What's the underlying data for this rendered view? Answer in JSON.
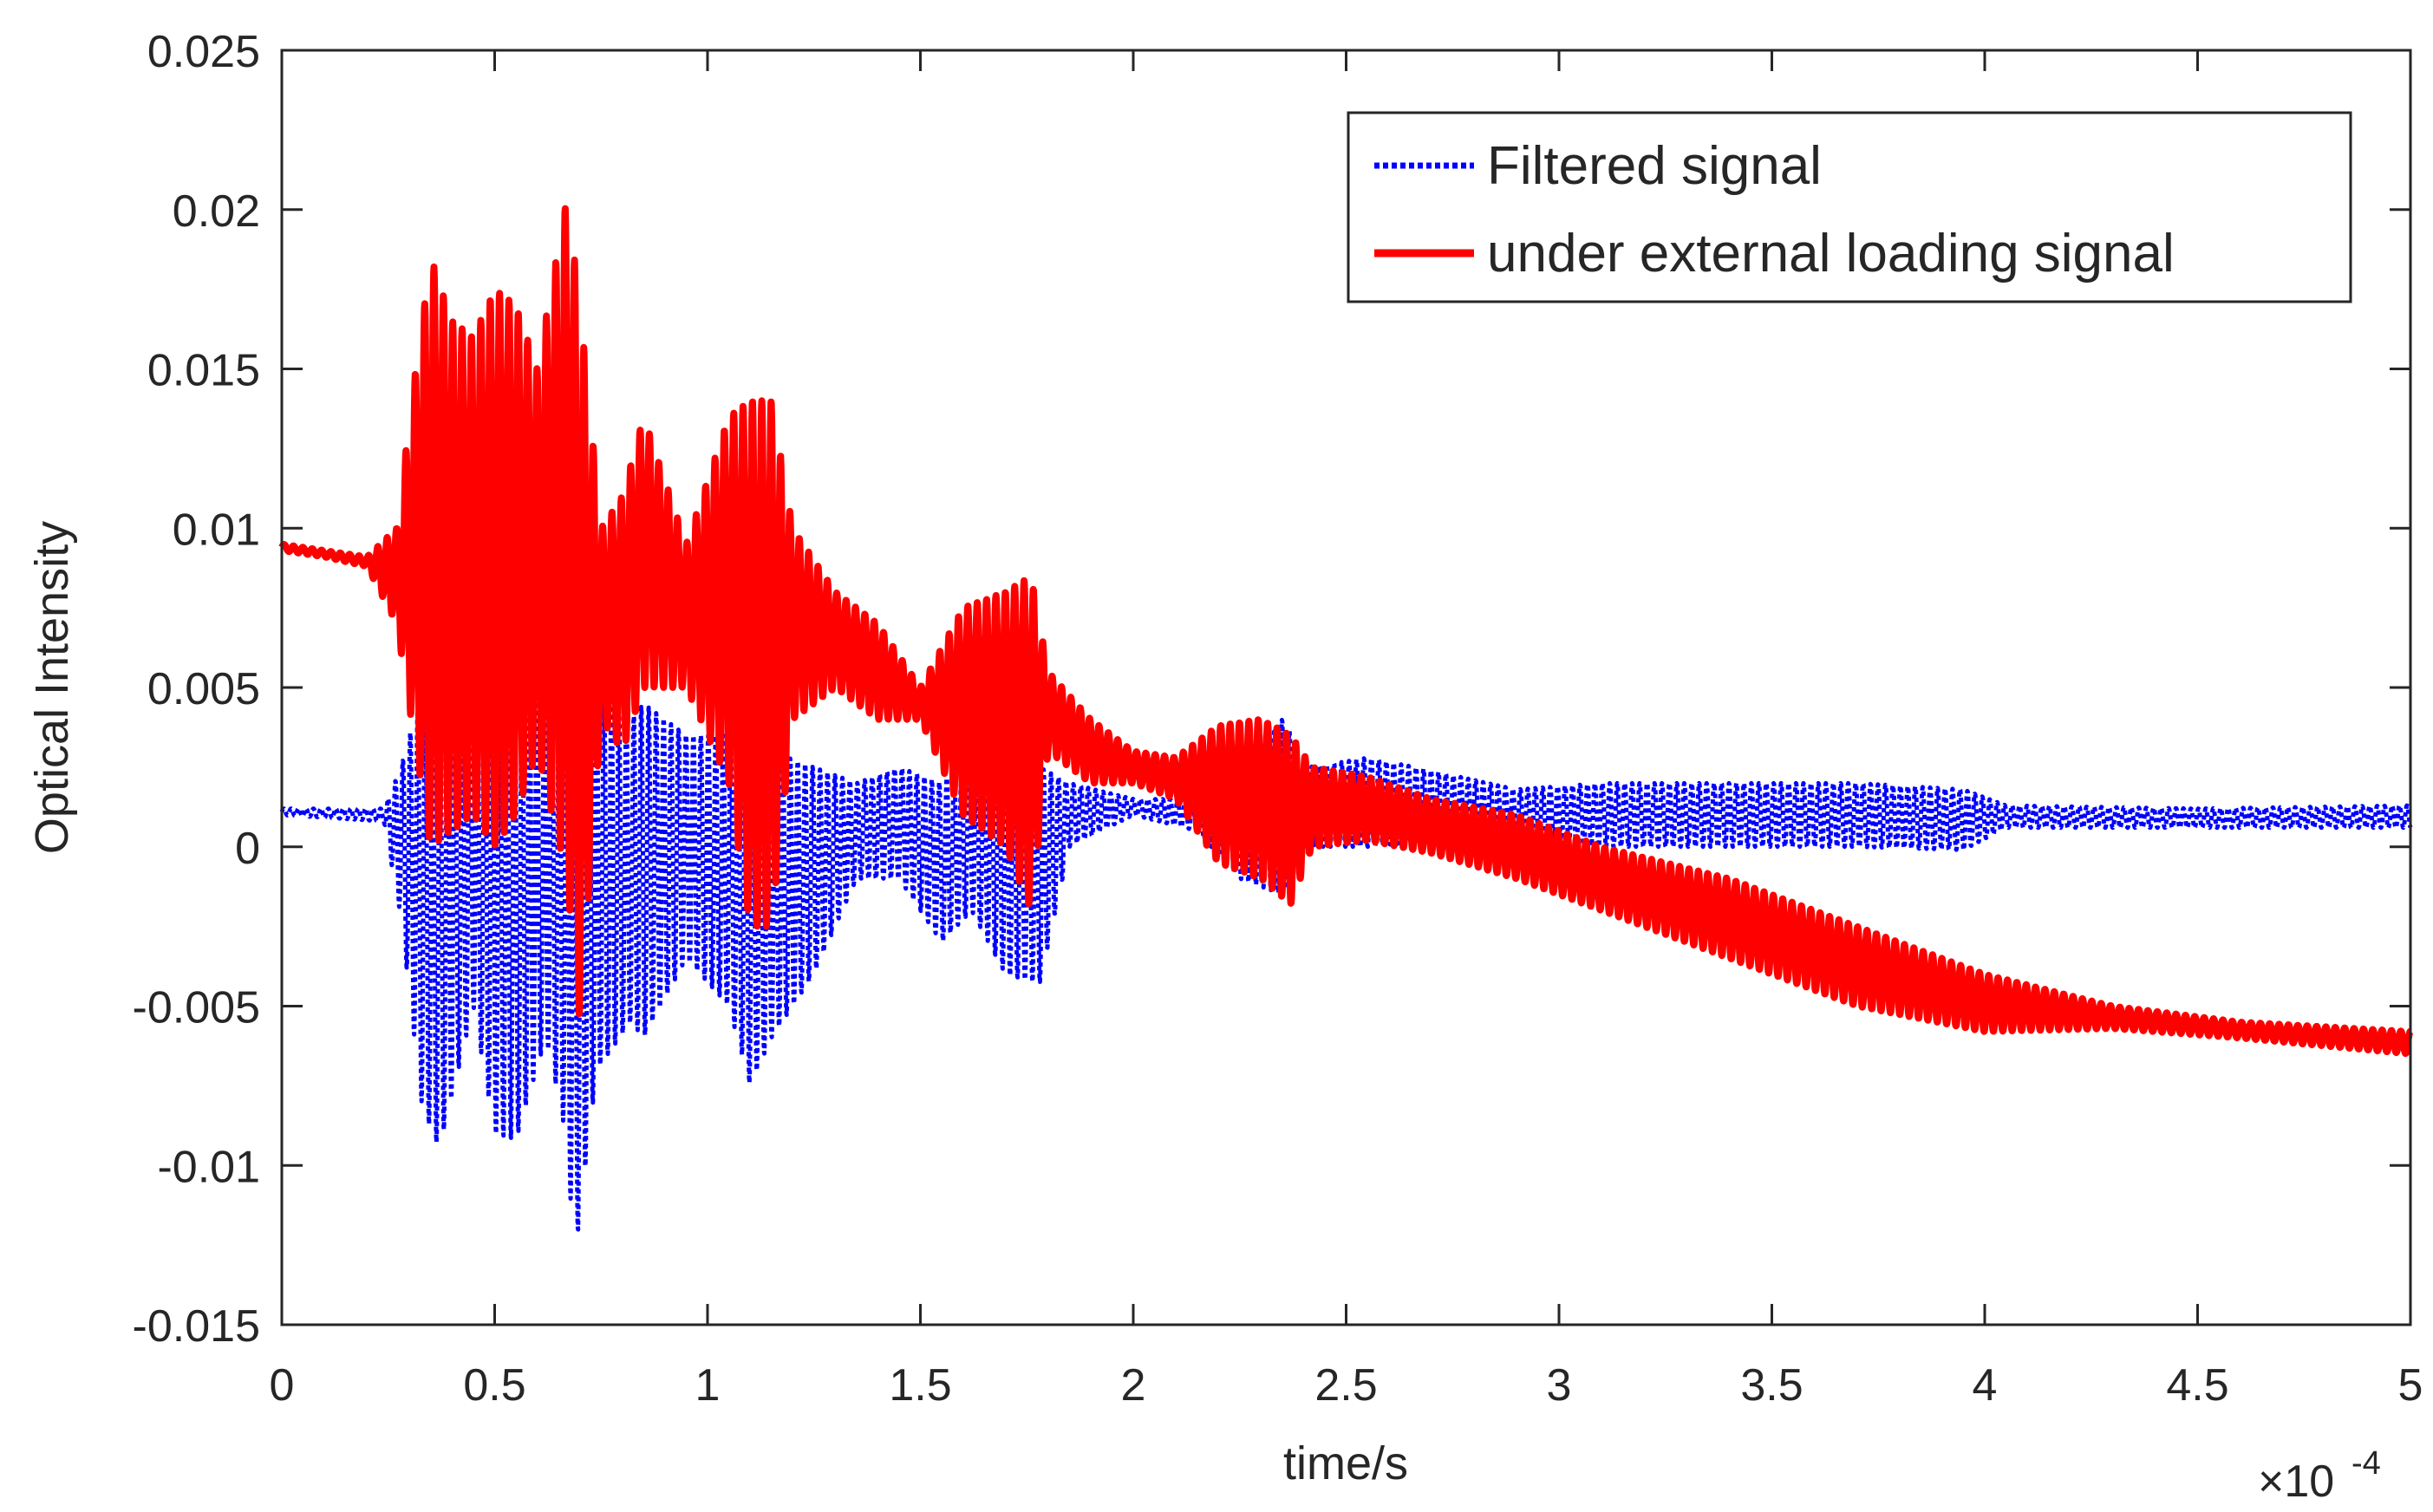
{
  "chart_data": {
    "type": "line",
    "title": "",
    "xlabel": "time/s",
    "ylabel": "Optical Intensity",
    "x_exponent_label": "×10",
    "x_exponent_power": "-4",
    "x_scale": 0.0001,
    "xlim": [
      0,
      5
    ],
    "ylim": [
      -0.015,
      0.025
    ],
    "x_ticks": [
      "0",
      "0.5",
      "1",
      "1.5",
      "2",
      "2.5",
      "3",
      "3.5",
      "4",
      "4.5",
      "5"
    ],
    "y_ticks": [
      "-0.015",
      "-0.01",
      "-0.005",
      "0",
      "0.005",
      "0.01",
      "0.015",
      "0.02",
      "0.025"
    ],
    "grid": false,
    "legend_position": "top-right",
    "series": [
      {
        "name": "Filtered signal",
        "color": "#0000ff",
        "style": "dotted",
        "envelope": [
          [
            0.0,
            0.0012,
            0.001
          ],
          [
            0.24,
            0.0012,
            0.0008
          ],
          [
            0.28,
            0.0025,
            -0.0022
          ],
          [
            0.33,
            0.005,
            -0.0082
          ],
          [
            0.37,
            0.005,
            -0.0095
          ],
          [
            0.45,
            0.0045,
            -0.005
          ],
          [
            0.5,
            0.006,
            -0.009
          ],
          [
            0.55,
            0.006,
            -0.0092
          ],
          [
            0.62,
            0.0045,
            -0.006
          ],
          [
            0.66,
            0.007,
            -0.0085
          ],
          [
            0.69,
            0.007,
            -0.0127
          ],
          [
            0.74,
            0.005,
            -0.007
          ],
          [
            0.82,
            0.004,
            -0.0055
          ],
          [
            0.85,
            0.0045,
            -0.006
          ],
          [
            0.95,
            0.0035,
            -0.0035
          ],
          [
            1.05,
            0.0035,
            -0.005
          ],
          [
            1.1,
            0.0035,
            -0.0075
          ],
          [
            1.15,
            0.003,
            -0.006
          ],
          [
            1.25,
            0.0025,
            -0.004
          ],
          [
            1.35,
            0.002,
            -0.001
          ],
          [
            1.45,
            0.0025,
            -0.001
          ],
          [
            1.55,
            0.002,
            -0.003
          ],
          [
            1.62,
            0.003,
            -0.002
          ],
          [
            1.7,
            0.003,
            -0.004
          ],
          [
            1.78,
            0.0025,
            -0.0043
          ],
          [
            1.85,
            0.002,
            0.0
          ],
          [
            2.0,
            0.0015,
            0.001
          ],
          [
            2.15,
            0.0015,
            0.0005
          ],
          [
            2.25,
            0.0025,
            -0.001
          ],
          [
            2.35,
            0.004,
            -0.0015
          ],
          [
            2.42,
            0.0025,
            0.0
          ],
          [
            2.55,
            0.0028,
            0.0
          ],
          [
            2.7,
            0.0024,
            0.0002
          ],
          [
            2.9,
            0.0018,
            0.0002
          ],
          [
            3.1,
            0.002,
            0.0
          ],
          [
            3.4,
            0.002,
            0.0
          ],
          [
            3.7,
            0.002,
            0.0
          ],
          [
            3.95,
            0.0018,
            -0.0001
          ],
          [
            4.05,
            0.0013,
            0.0006
          ],
          [
            4.5,
            0.0012,
            0.0006
          ],
          [
            5.0,
            0.0013,
            0.0006
          ]
        ]
      },
      {
        "name": "under external loading signal",
        "color": "#ff0000",
        "style": "solid",
        "envelope": [
          [
            0.0,
            0.0095,
            0.0093
          ],
          [
            0.1,
            0.0093,
            0.0091
          ],
          [
            0.2,
            0.0091,
            0.0088
          ],
          [
            0.27,
            0.01,
            0.007
          ],
          [
            0.31,
            0.0145,
            0.0035
          ],
          [
            0.35,
            0.0185,
            0.0
          ],
          [
            0.4,
            0.0165,
            0.0005
          ],
          [
            0.45,
            0.016,
            0.001
          ],
          [
            0.5,
            0.0175,
            0.0
          ],
          [
            0.55,
            0.017,
            0.001
          ],
          [
            0.6,
            0.015,
            0.003
          ],
          [
            0.67,
            0.0204,
            -0.001
          ],
          [
            0.7,
            0.017,
            -0.0055
          ],
          [
            0.75,
            0.01,
            0.004
          ],
          [
            0.8,
            0.011,
            0.003
          ],
          [
            0.85,
            0.0135,
            0.005
          ],
          [
            0.95,
            0.0095,
            0.005
          ],
          [
            1.05,
            0.0135,
            0.002
          ],
          [
            1.1,
            0.014,
            -0.0025
          ],
          [
            1.15,
            0.014,
            -0.0025
          ],
          [
            1.2,
            0.01,
            0.004
          ],
          [
            1.3,
            0.008,
            0.005
          ],
          [
            1.4,
            0.007,
            0.004
          ],
          [
            1.5,
            0.005,
            0.004
          ],
          [
            1.6,
            0.0075,
            0.001
          ],
          [
            1.7,
            0.008,
            0.0
          ],
          [
            1.76,
            0.0085,
            -0.002
          ],
          [
            1.8,
            0.0055,
            0.003
          ],
          [
            1.9,
            0.004,
            0.002
          ],
          [
            2.0,
            0.003,
            0.002
          ],
          [
            2.1,
            0.0028,
            0.0015
          ],
          [
            2.2,
            0.0038,
            -0.0005
          ],
          [
            2.3,
            0.004,
            -0.001
          ],
          [
            2.37,
            0.0035,
            -0.0018
          ],
          [
            2.42,
            0.0025,
            0.0
          ],
          [
            2.55,
            0.0022,
            0.0002
          ],
          [
            2.7,
            0.0015,
            -0.0002
          ],
          [
            2.9,
            0.001,
            -0.001
          ],
          [
            3.1,
            0.0,
            -0.002
          ],
          [
            3.4,
            -0.001,
            -0.0035
          ],
          [
            3.7,
            -0.0025,
            -0.005
          ],
          [
            4.0,
            -0.004,
            -0.0058
          ],
          [
            4.3,
            -0.005,
            -0.0057
          ],
          [
            4.6,
            -0.0055,
            -0.006
          ],
          [
            5.0,
            -0.0058,
            -0.0065
          ]
        ]
      }
    ]
  }
}
